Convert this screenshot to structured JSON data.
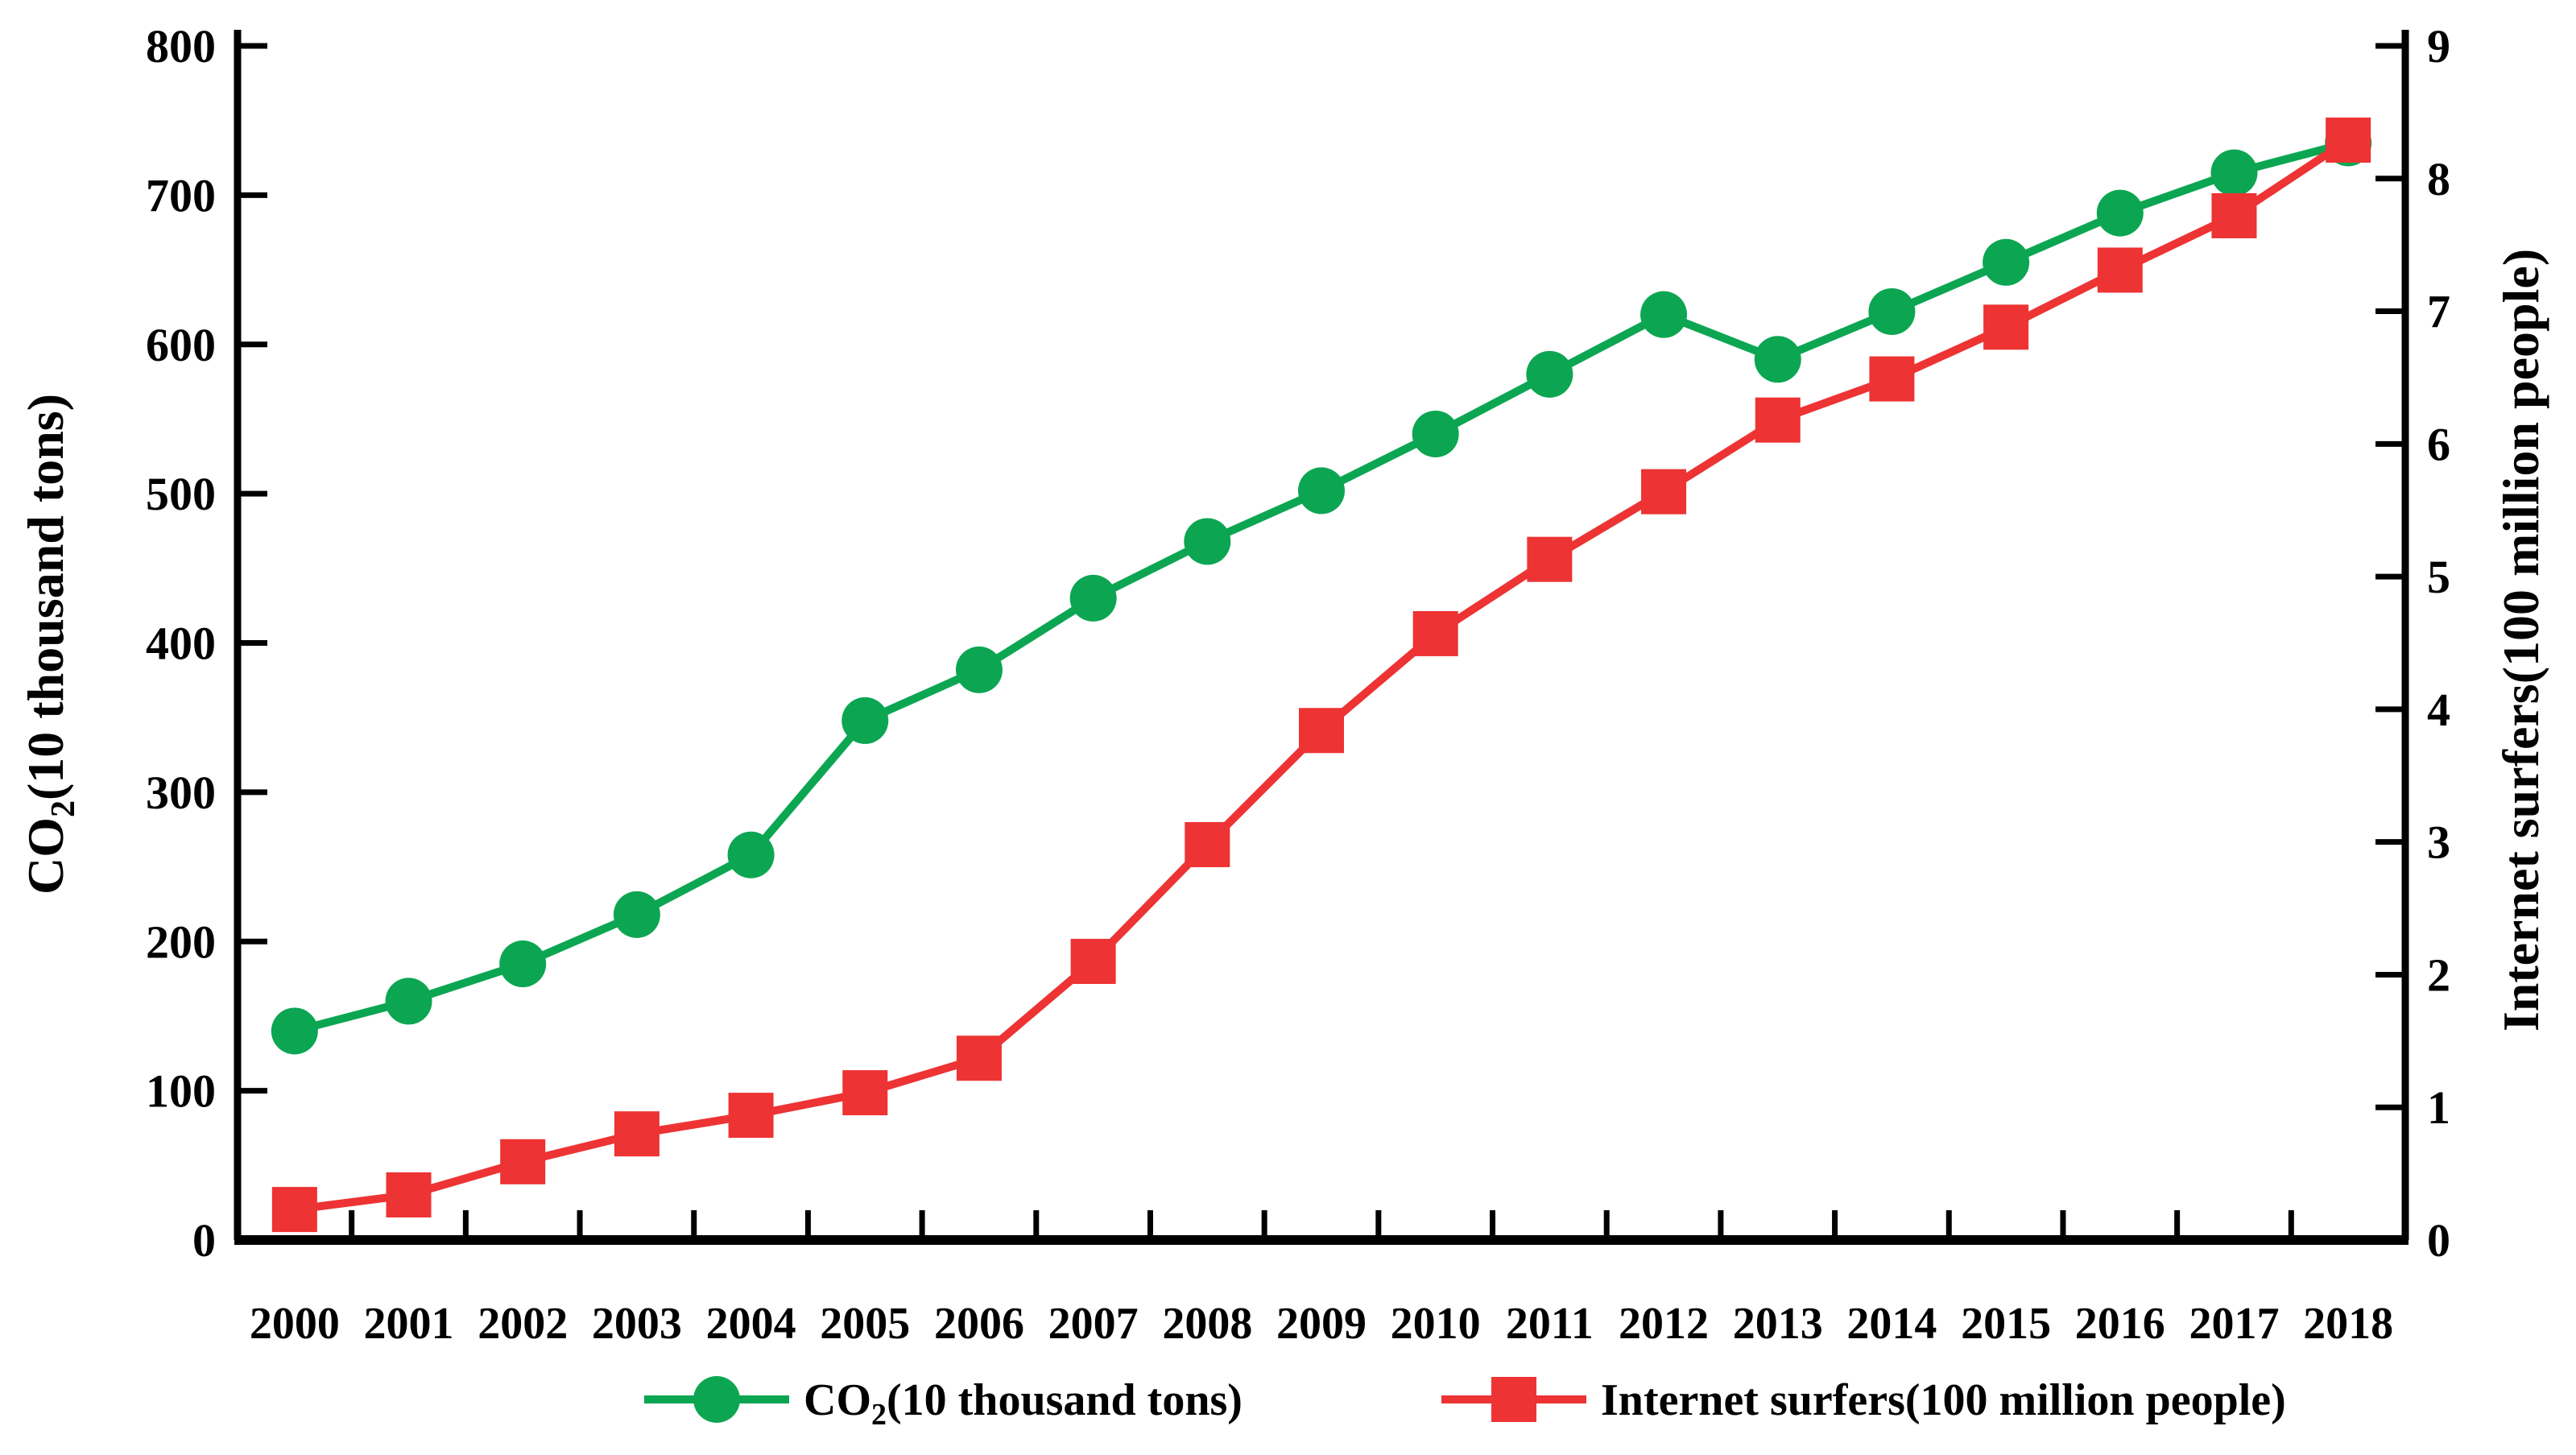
{
  "chart_data": {
    "type": "line",
    "title": "",
    "x": [
      2000,
      2001,
      2002,
      2003,
      2004,
      2005,
      2006,
      2007,
      2008,
      2009,
      2010,
      2011,
      2012,
      2013,
      2014,
      2015,
      2016,
      2017,
      2018
    ],
    "series": [
      {
        "name": "CO2(10 thousand tons)",
        "axis": "left",
        "marker": "circle",
        "color": "#0ca652",
        "values": [
          140,
          160,
          185,
          218,
          258,
          348,
          382,
          430,
          468,
          502,
          540,
          580,
          620,
          590,
          622,
          655,
          688,
          715,
          735
        ]
      },
      {
        "name": "Internet surfers(100 million people)",
        "axis": "right",
        "marker": "square",
        "color": "#ed3333",
        "values": [
          0.23,
          0.34,
          0.59,
          0.8,
          0.94,
          1.11,
          1.37,
          2.1,
          2.98,
          3.84,
          4.57,
          5.13,
          5.64,
          6.18,
          6.49,
          6.88,
          7.31,
          7.72,
          8.29
        ]
      }
    ],
    "y_left": {
      "label": "CO2(10 thousand tons)",
      "min": 0,
      "max": 800,
      "ticks": [
        0,
        100,
        200,
        300,
        400,
        500,
        600,
        700,
        800
      ]
    },
    "y_right": {
      "label": "Internet surfers(100 million people)",
      "min": 0,
      "max": 9,
      "ticks": [
        0,
        1,
        2,
        3,
        4,
        5,
        6,
        7,
        8,
        9
      ]
    },
    "grid": false,
    "legend_position": "bottom"
  },
  "labels": {
    "left_title_prefix": "CO",
    "left_title_sub": "2",
    "left_title_suffix": "(10 thousand tons)",
    "right_title": "Internet  surfers(100 million people)",
    "legend_co2_prefix": "CO",
    "legend_co2_sub": "2",
    "legend_co2_suffix": "(10 thousand tons)",
    "legend_internet": "Internet surfers(100 million people)"
  },
  "colors": {
    "axis": "#000000",
    "co2_series": "#0ca652",
    "internet_series": "#ed3333",
    "background": "#ffffff"
  }
}
